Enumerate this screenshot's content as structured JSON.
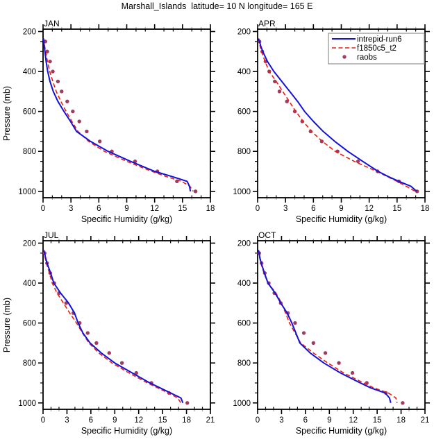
{
  "title": "Marshall_Islands  latitude= 10 N longitude= 165 E",
  "colors": {
    "model1_blue": "#1212d8",
    "model2_red": "#ee1c10",
    "obs_dot": "#a03c64",
    "axis": "#000000",
    "minor_tick_gray": "#aaaaaa",
    "legend_border": "#909090"
  },
  "legend": {
    "host_panel": "APR",
    "entries": [
      {
        "label": "intrepid-run6",
        "marker": "line-solid",
        "color_key": "model1_blue"
      },
      {
        "label": "f1850c5_t2",
        "marker": "line-dashed",
        "color_key": "model2_red"
      },
      {
        "label": "raobs",
        "marker": "dot",
        "color_key": "obs_dot"
      }
    ]
  },
  "chart_data": [
    {
      "type": "line",
      "panel": "JAN",
      "panel_label": "JAN",
      "xlabel": "Specific Humidity (g/kg)",
      "ylabel": "Pressure (mb)",
      "xlim": [
        0,
        18
      ],
      "xticks": [
        0,
        3,
        6,
        9,
        12,
        15,
        18
      ],
      "x_minor_step": 1,
      "yticks": [
        200,
        400,
        600,
        800,
        1000
      ],
      "y_minor_step": 50,
      "y_axis_inverted": true,
      "series": [
        {
          "name": "intrepid-run6",
          "style": "solid",
          "color_key": "model1_blue",
          "pressure": [
            235,
            250,
            275,
            300,
            350,
            400,
            450,
            500,
            550,
            600,
            650,
            700,
            750,
            800,
            850,
            900,
            925,
            950,
            975,
            1000
          ],
          "values": [
            0.05,
            0.08,
            0.13,
            0.2,
            0.33,
            0.5,
            0.75,
            1.1,
            1.6,
            2.25,
            2.95,
            3.6,
            5.1,
            7.0,
            9.4,
            12.0,
            13.8,
            15.5,
            15.75,
            15.85
          ]
        },
        {
          "name": "f1850c5_t2",
          "style": "dashed",
          "color_key": "model2_red",
          "pressure": [
            235,
            250,
            275,
            300,
            350,
            400,
            450,
            500,
            550,
            600,
            650,
            700,
            750,
            800,
            850,
            900,
            925,
            950,
            975,
            1000
          ],
          "values": [
            0.05,
            0.1,
            0.18,
            0.28,
            0.47,
            0.72,
            1.05,
            1.42,
            1.92,
            2.48,
            3.1,
            3.75,
            4.9,
            6.6,
            9.0,
            11.7,
            13.2,
            14.9,
            15.8,
            16.15
          ]
        },
        {
          "name": "raobs",
          "style": "dots",
          "color_key": "obs_dot",
          "pressure": [
            250,
            300,
            350,
            400,
            450,
            500,
            550,
            600,
            650,
            700,
            750,
            800,
            850,
            900,
            950,
            1000
          ],
          "values": [
            0.25,
            0.45,
            0.75,
            1.05,
            1.6,
            2.0,
            2.6,
            3.2,
            3.9,
            4.7,
            6.1,
            7.4,
            9.9,
            12.3,
            14.4,
            16.4
          ]
        }
      ]
    },
    {
      "type": "line",
      "panel": "APR",
      "panel_label": "APR",
      "xlabel": "Specific Humidity (g/kg)",
      "ylabel": "",
      "xlim": [
        0,
        18
      ],
      "xticks": [
        0,
        3,
        6,
        9,
        12,
        15,
        18
      ],
      "x_minor_step": 1,
      "yticks": [
        200,
        400,
        600,
        800,
        1000
      ],
      "y_minor_step": 50,
      "y_axis_inverted": true,
      "series": [
        {
          "name": "intrepid-run6",
          "style": "solid",
          "color_key": "model1_blue",
          "pressure": [
            235,
            250,
            275,
            300,
            350,
            400,
            450,
            500,
            550,
            600,
            650,
            700,
            750,
            800,
            850,
            900,
            925,
            950,
            975,
            1000
          ],
          "values": [
            0.1,
            0.2,
            0.35,
            0.55,
            1.05,
            1.75,
            2.6,
            3.45,
            4.3,
            5.05,
            6.0,
            7.05,
            8.3,
            9.7,
            11.3,
            12.95,
            14.0,
            15.2,
            16.5,
            17.1
          ]
        },
        {
          "name": "f1850c5_t2",
          "style": "dashed",
          "color_key": "model2_red",
          "pressure": [
            235,
            250,
            275,
            300,
            350,
            400,
            450,
            500,
            550,
            600,
            650,
            700,
            750,
            800,
            850,
            900,
            925,
            950,
            975,
            1000
          ],
          "values": [
            0.08,
            0.15,
            0.28,
            0.42,
            0.8,
            1.25,
            2.0,
            2.7,
            3.4,
            4.1,
            4.9,
            5.8,
            6.95,
            8.35,
            10.4,
            12.8,
            13.9,
            15.0,
            16.0,
            16.95
          ]
        },
        {
          "name": "raobs",
          "style": "dots",
          "color_key": "obs_dot",
          "pressure": [
            250,
            300,
            350,
            400,
            450,
            500,
            550,
            600,
            650,
            700,
            750,
            800,
            850,
            900,
            950,
            1000
          ],
          "values": [
            0.2,
            0.5,
            0.85,
            1.25,
            1.85,
            2.35,
            3.15,
            4.0,
            4.8,
            5.7,
            6.9,
            8.6,
            10.8,
            12.9,
            15.2,
            17.15
          ]
        }
      ]
    },
    {
      "type": "line",
      "panel": "JUL",
      "panel_label": "JUL",
      "xlabel": "Specific Humidity (g/kg)",
      "ylabel": "Pressure (mb)",
      "xlim": [
        0,
        21
      ],
      "xticks": [
        0,
        3,
        6,
        9,
        12,
        15,
        18,
        21
      ],
      "x_minor_step": 1,
      "yticks": [
        200,
        400,
        600,
        800,
        1000
      ],
      "y_minor_step": 50,
      "y_axis_inverted": true,
      "series": [
        {
          "name": "intrepid-run6",
          "style": "solid",
          "color_key": "model1_blue",
          "pressure": [
            235,
            250,
            275,
            300,
            350,
            400,
            450,
            500,
            550,
            600,
            650,
            700,
            750,
            800,
            850,
            900,
            925,
            950,
            975,
            1000
          ],
          "values": [
            0.1,
            0.18,
            0.33,
            0.5,
            0.95,
            1.35,
            2.2,
            3.2,
            3.95,
            4.4,
            5.0,
            5.9,
            7.3,
            9.0,
            11.2,
            13.4,
            14.7,
            16.0,
            17.3,
            17.55
          ]
        },
        {
          "name": "f1850c5_t2",
          "style": "dashed",
          "color_key": "model2_red",
          "pressure": [
            235,
            250,
            275,
            300,
            350,
            400,
            450,
            500,
            550,
            600,
            650,
            700,
            750,
            800,
            850,
            900,
            925,
            950,
            975,
            1000
          ],
          "values": [
            0.08,
            0.14,
            0.27,
            0.42,
            0.8,
            1.15,
            1.75,
            2.55,
            3.35,
            4.2,
            4.95,
            5.75,
            7.0,
            8.65,
            10.8,
            13.1,
            14.4,
            15.7,
            16.9,
            17.3
          ]
        },
        {
          "name": "raobs",
          "style": "dots",
          "color_key": "obs_dot",
          "pressure": [
            250,
            300,
            350,
            400,
            450,
            500,
            550,
            600,
            650,
            700,
            750,
            800,
            850,
            900,
            950,
            1000
          ],
          "values": [
            0.2,
            0.5,
            0.9,
            1.4,
            2.0,
            2.9,
            3.8,
            4.6,
            5.6,
            6.7,
            8.3,
            9.9,
            11.7,
            13.6,
            15.8,
            18.1
          ]
        }
      ]
    },
    {
      "type": "line",
      "panel": "OCT",
      "panel_label": "OCT",
      "xlabel": "Specific Humidity (g/kg)",
      "ylabel": "",
      "xlim": [
        0,
        21
      ],
      "xticks": [
        0,
        3,
        6,
        9,
        12,
        15,
        18,
        21
      ],
      "x_minor_step": 1,
      "yticks": [
        200,
        400,
        600,
        800,
        1000
      ],
      "y_minor_step": 50,
      "y_axis_inverted": true,
      "series": [
        {
          "name": "intrepid-run6",
          "style": "solid",
          "color_key": "model1_blue",
          "pressure": [
            235,
            250,
            275,
            300,
            350,
            400,
            450,
            500,
            550,
            600,
            650,
            700,
            750,
            800,
            850,
            900,
            925,
            950,
            975,
            1000
          ],
          "values": [
            0.1,
            0.18,
            0.3,
            0.45,
            0.85,
            1.3,
            2.2,
            2.9,
            3.7,
            4.3,
            4.8,
            5.3,
            6.6,
            8.3,
            10.4,
            12.9,
            14.2,
            16.0,
            16.55,
            16.7
          ]
        },
        {
          "name": "f1850c5_t2",
          "style": "dashed",
          "color_key": "model2_red",
          "pressure": [
            235,
            250,
            275,
            300,
            350,
            400,
            450,
            500,
            550,
            600,
            650,
            700,
            750,
            800,
            850,
            900,
            925,
            950,
            975,
            1000
          ],
          "values": [
            0.08,
            0.14,
            0.26,
            0.4,
            0.8,
            1.3,
            2.3,
            3.0,
            3.5,
            4.0,
            4.7,
            5.4,
            7.0,
            8.8,
            10.8,
            13.3,
            14.6,
            16.4,
            17.35,
            17.5
          ]
        },
        {
          "name": "raobs",
          "style": "dots",
          "color_key": "obs_dot",
          "pressure": [
            250,
            300,
            350,
            400,
            450,
            500,
            550,
            600,
            650,
            700,
            750,
            800,
            850,
            900,
            950,
            1000
          ],
          "values": [
            0.2,
            0.5,
            0.9,
            1.4,
            2.1,
            2.9,
            3.8,
            4.7,
            5.8,
            7.0,
            8.5,
            10.2,
            11.9,
            13.7,
            16.1,
            18.2
          ]
        }
      ]
    }
  ]
}
